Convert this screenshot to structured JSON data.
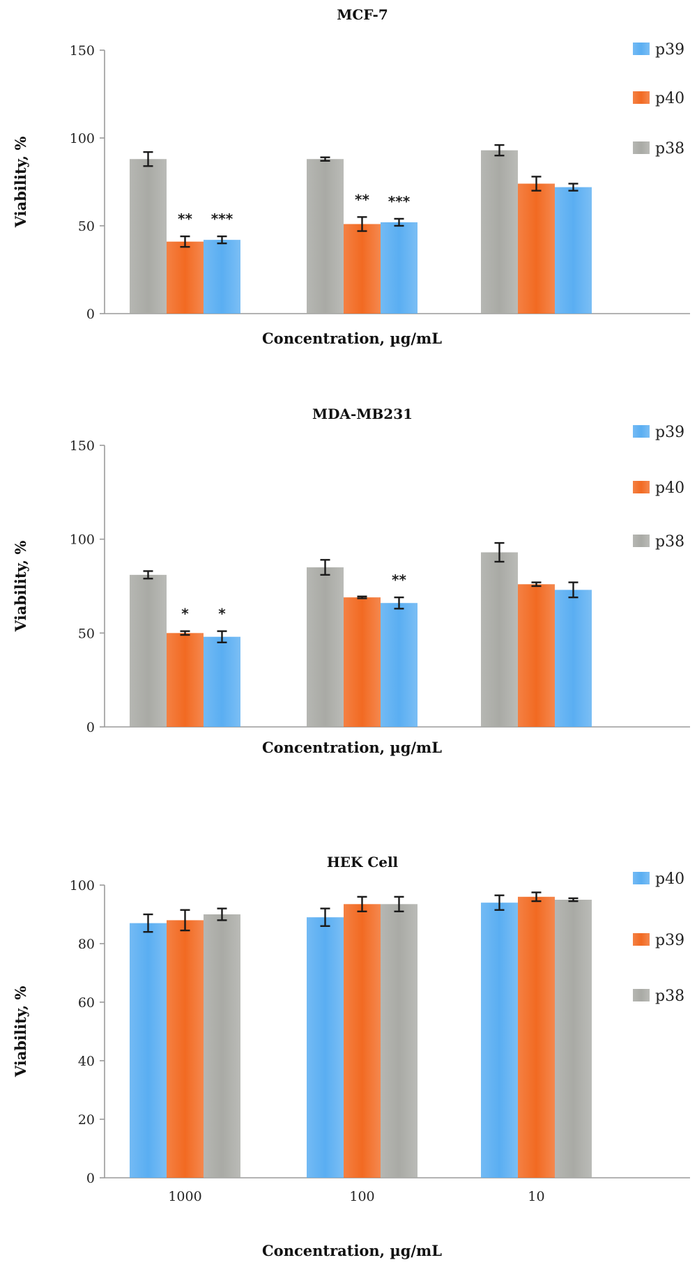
{
  "colors": {
    "blue": "#5aaef2",
    "orange": "#f26a22",
    "gray": "#a9aaa5"
  },
  "chart_data": [
    {
      "type": "bar",
      "title": "MCF-7",
      "xlabel": "Concentration, µg/mL",
      "ylabel": "Viability, %",
      "ylim": [
        0,
        150
      ],
      "yticks": [
        "0",
        "50",
        "100",
        "150"
      ],
      "categories": [
        "",
        "",
        ""
      ],
      "legend": [
        "p39",
        "p40",
        "p38"
      ],
      "legend_position": "right",
      "series": [
        {
          "name": "p38",
          "color": "gray",
          "values": [
            88,
            88,
            93
          ],
          "errors": [
            4,
            1,
            3
          ]
        },
        {
          "name": "p40",
          "color": "orange",
          "values": [
            41,
            51,
            74
          ],
          "errors": [
            3,
            4,
            4
          ]
        },
        {
          "name": "p39",
          "color": "blue",
          "values": [
            42,
            52,
            72
          ],
          "errors": [
            2,
            2,
            2
          ]
        }
      ],
      "annotations": [
        {
          "category": 0,
          "series": 1,
          "text": "**"
        },
        {
          "category": 0,
          "series": 2,
          "text": "***"
        },
        {
          "category": 1,
          "series": 1,
          "text": "**"
        },
        {
          "category": 1,
          "series": 2,
          "text": "***"
        }
      ]
    },
    {
      "type": "bar",
      "title": "MDA-MB231",
      "xlabel": "Concentration, µg/mL",
      "ylabel": "Viability, %",
      "ylim": [
        0,
        150
      ],
      "yticks": [
        "0",
        "50",
        "100",
        "150"
      ],
      "categories": [
        "",
        "",
        ""
      ],
      "legend": [
        "p39",
        "p40",
        "p38"
      ],
      "legend_position": "right",
      "series": [
        {
          "name": "p38",
          "color": "gray",
          "values": [
            81,
            85,
            93
          ],
          "errors": [
            2,
            4,
            5
          ]
        },
        {
          "name": "p40",
          "color": "orange",
          "values": [
            50,
            69,
            76
          ],
          "errors": [
            1,
            0.5,
            1
          ]
        },
        {
          "name": "p39",
          "color": "blue",
          "values": [
            48,
            66,
            73
          ],
          "errors": [
            3,
            3,
            4
          ]
        }
      ],
      "annotations": [
        {
          "category": 0,
          "series": 1,
          "text": "*"
        },
        {
          "category": 0,
          "series": 2,
          "text": "*"
        },
        {
          "category": 1,
          "series": 2,
          "text": "**"
        }
      ]
    },
    {
      "type": "bar",
      "title": "HEK Cell",
      "xlabel": "Concentration, µg/mL",
      "ylabel": "Viability, %",
      "ylim": [
        0,
        100
      ],
      "yticks": [
        "0",
        "20",
        "40",
        "60",
        "80",
        "100"
      ],
      "categories": [
        "1000",
        "100",
        "10"
      ],
      "legend": [
        "p40",
        "p39",
        "p38"
      ],
      "legend_position": "right",
      "series": [
        {
          "name": "p40",
          "color": "blue",
          "values": [
            87,
            89,
            94
          ],
          "errors": [
            3,
            3,
            2.5
          ]
        },
        {
          "name": "p39",
          "color": "orange",
          "values": [
            88,
            93.5,
            96
          ],
          "errors": [
            3.5,
            2.5,
            1.5
          ]
        },
        {
          "name": "p38",
          "color": "gray",
          "values": [
            90,
            93.5,
            95
          ],
          "errors": [
            2,
            2.5,
            0.5
          ]
        }
      ],
      "annotations": []
    }
  ]
}
